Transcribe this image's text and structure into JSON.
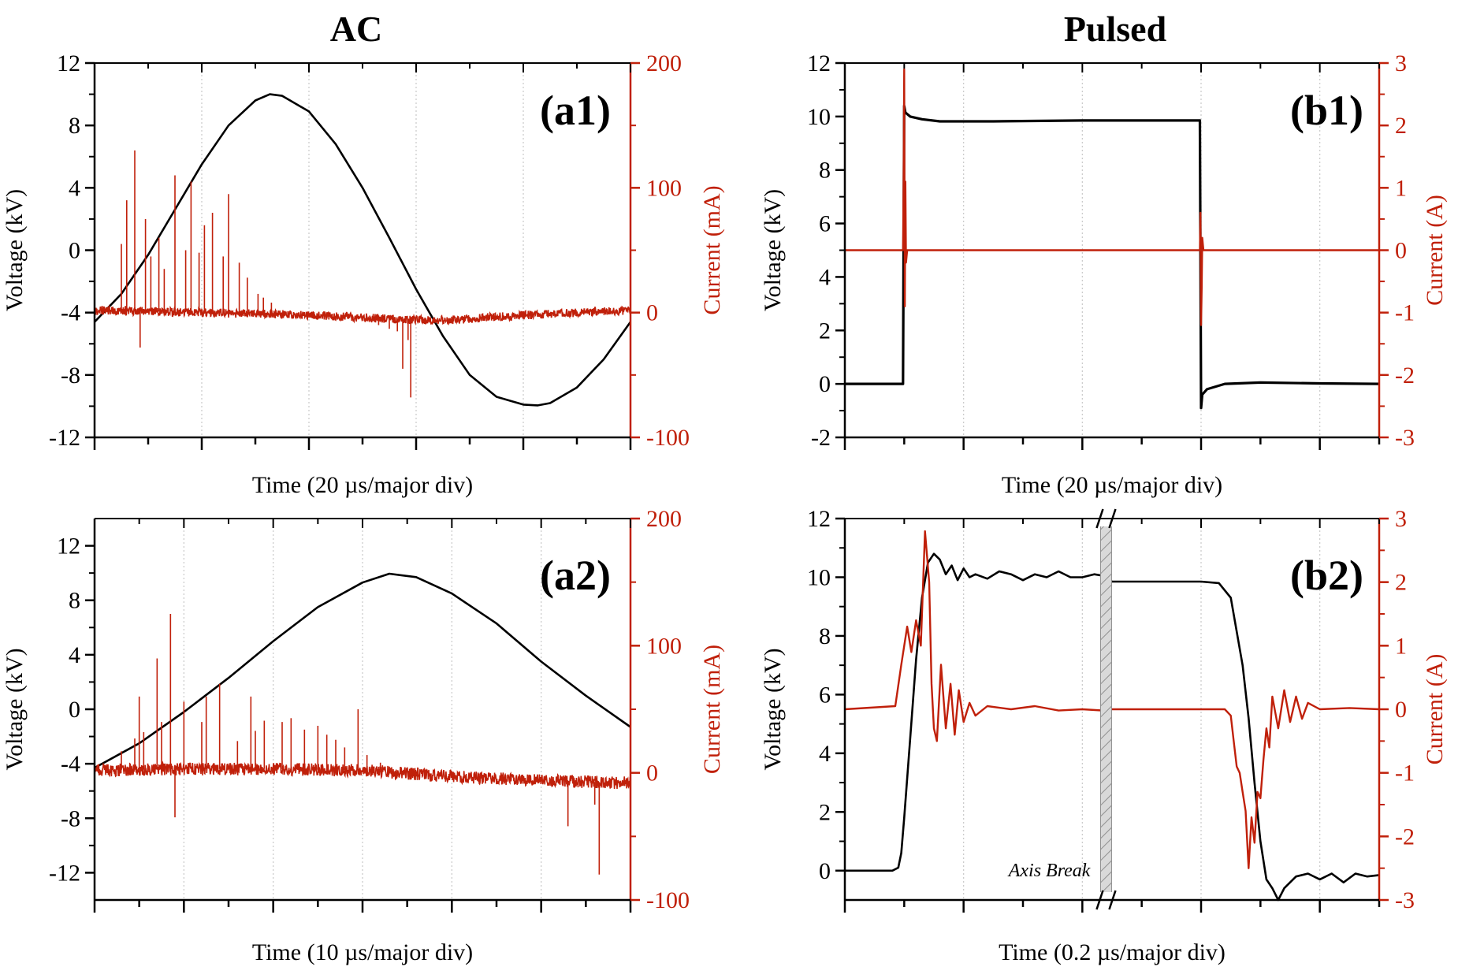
{
  "colors": {
    "voltage": "#000000",
    "current": "#c0200a",
    "grid": "#c8c8c8"
  },
  "column_titles": {
    "left": "AC",
    "right": "Pulsed"
  },
  "chart_data": [
    {
      "id": "a1",
      "type": "line",
      "panel_label": "(a1)",
      "xlabel": "Time (20 µs/major div)",
      "ylabel_left": "Voltage (kV)",
      "ylabel_right": "Current (mA)",
      "xlim": [
        0,
        10
      ],
      "x_major_divs": 5,
      "ylim_left": [
        -12,
        12
      ],
      "yticks_left": [
        -12,
        -8,
        -4,
        0,
        4,
        8,
        12
      ],
      "ylim_right": [
        -100,
        200
      ],
      "yticks_right": [
        -100,
        0,
        100,
        200
      ],
      "series": [
        {
          "name": "Voltage",
          "axis": "left",
          "color": "#000000",
          "x": [
            0,
            0.5,
            1,
            1.5,
            2,
            2.5,
            3,
            3.27,
            3.5,
            4,
            4.5,
            5,
            5.5,
            6,
            6.5,
            7,
            7.5,
            8,
            8.27,
            8.5,
            9,
            9.5,
            10
          ],
          "y": [
            -4.6,
            -2.8,
            -0.3,
            2.6,
            5.5,
            8.0,
            9.6,
            10.0,
            9.9,
            8.9,
            6.8,
            4.0,
            0.8,
            -2.5,
            -5.5,
            -8.0,
            -9.4,
            -9.9,
            -9.95,
            -9.8,
            -8.8,
            -7.0,
            -4.6
          ]
        },
        {
          "name": "Current",
          "axis": "right",
          "color": "#c0200a",
          "baseline": {
            "x": [
              0,
              1,
              2,
              3,
              4,
              5,
              6,
              6.5,
              7,
              8,
              9,
              10
            ],
            "y": [
              2,
              1,
              0,
              -1,
              -2,
              -4,
              -6,
              -6,
              -5,
              -2,
              0,
              2
            ]
          },
          "noise_amplitude": 3.5,
          "spikes": {
            "x": [
              0.5,
              0.6,
              0.75,
              0.85,
              0.95,
              1.05,
              1.2,
              1.3,
              1.5,
              1.7,
              1.8,
              1.95,
              2.05,
              2.2,
              2.4,
              2.5,
              2.7,
              2.85,
              3.05,
              3.15,
              3.3,
              5.3,
              5.5,
              5.65,
              5.75,
              5.85,
              5.9
            ],
            "y": [
              55,
              90,
              130,
              -28,
              75,
              45,
              60,
              35,
              110,
              50,
              105,
              48,
              70,
              80,
              45,
              95,
              40,
              28,
              15,
              12,
              8,
              -10,
              -13,
              -15,
              -45,
              -22,
              -68
            ]
          }
        }
      ]
    },
    {
      "id": "b1",
      "type": "line",
      "panel_label": "(b1)",
      "xlabel": "Time (20 µs/major div)",
      "ylabel_left": "Voltage (kV)",
      "ylabel_right": "Current (A)",
      "xlim": [
        0,
        9
      ],
      "x_major_divs": 4.5,
      "ylim_left": [
        -2,
        12
      ],
      "yticks_left": [
        -2,
        0,
        2,
        4,
        6,
        8,
        10,
        12
      ],
      "ylim_right": [
        -3,
        3
      ],
      "yticks_right": [
        -3,
        -2,
        -1,
        0,
        1,
        2,
        3
      ],
      "series": [
        {
          "name": "Voltage",
          "axis": "left",
          "color": "#000000",
          "x": [
            0,
            0.98,
            1.0,
            1.02,
            1.1,
            1.3,
            1.6,
            2.5,
            4.0,
            5.0,
            5.98,
            6.0,
            6.02,
            6.1,
            6.4,
            7.0,
            8.0,
            9.0
          ],
          "y": [
            0,
            0,
            10.4,
            10.15,
            10.0,
            9.9,
            9.82,
            9.82,
            9.85,
            9.85,
            9.85,
            -0.9,
            -0.4,
            -0.2,
            0,
            0.05,
            0.02,
            0
          ]
        },
        {
          "name": "Current",
          "axis": "right",
          "color": "#c0200a",
          "x": [
            0,
            0.98,
            0.99,
            1.0,
            1.01,
            1.02,
            1.03,
            1.05,
            9.0
          ],
          "y": [
            0,
            0,
            1.2,
            2.9,
            -0.9,
            1.1,
            -0.2,
            0,
            0
          ],
          "x2": [
            5.98,
            5.99,
            6.0,
            6.01,
            6.02,
            6.04,
            9.0
          ],
          "y2": [
            0,
            0.6,
            -1.2,
            -0.6,
            0.2,
            0,
            0
          ]
        }
      ]
    },
    {
      "id": "a2",
      "type": "line",
      "panel_label": "(a2)",
      "xlabel": "Time (10 µs/major div)",
      "ylabel_left": "Voltage (kV)",
      "ylabel_right": "Current (mA)",
      "xlim": [
        0,
        6
      ],
      "x_major_divs": 6,
      "ylim_left": [
        -14,
        14
      ],
      "yticks_left": [
        -12,
        -8,
        -4,
        0,
        4,
        8,
        12
      ],
      "ylim_right": [
        -100,
        200
      ],
      "yticks_right": [
        -100,
        0,
        100,
        200
      ],
      "series": [
        {
          "name": "Voltage",
          "axis": "left",
          "color": "#000000",
          "x": [
            0,
            0.5,
            1,
            1.5,
            2,
            2.5,
            3,
            3.3,
            3.6,
            4,
            4.5,
            5,
            5.5,
            6
          ],
          "y": [
            -4.3,
            -2.5,
            -0.2,
            2.3,
            5.0,
            7.5,
            9.3,
            9.95,
            9.7,
            8.5,
            6.3,
            3.5,
            1.0,
            -1.3
          ]
        },
        {
          "name": "Current",
          "axis": "right",
          "color": "#c0200a",
          "baseline": {
            "x": [
              0,
              1,
              2,
              3,
              3.4,
              4,
              5,
              6
            ],
            "y": [
              2,
              3,
              3,
              2,
              0,
              -3,
              -6,
              -8
            ]
          },
          "noise_amplitude": 5,
          "spikes": {
            "x": [
              0.3,
              0.45,
              0.5,
              0.55,
              0.7,
              0.75,
              0.85,
              0.9,
              1.0,
              1.2,
              1.25,
              1.4,
              1.6,
              1.75,
              1.8,
              1.9,
              2.1,
              2.2,
              2.35,
              2.5,
              2.6,
              2.7,
              2.8,
              2.95,
              3.05,
              3.2,
              5.3,
              5.6,
              5.65
            ],
            "y": [
              17,
              27,
              60,
              32,
              90,
              40,
              125,
              -35,
              56,
              40,
              60,
              70,
              25,
              60,
              33,
              41,
              40,
              43,
              34,
              37,
              30,
              26,
              20,
              50,
              14,
              8,
              -42,
              -25,
              -80
            ]
          }
        }
      ]
    },
    {
      "id": "b2",
      "type": "line",
      "panel_label": "(b2)",
      "xlabel": "Time (0.2 µs/major div)",
      "ylabel_left": "Voltage (kV)",
      "ylabel_right": "Current (A)",
      "annotation": "Axis Break",
      "xlim": [
        0,
        9
      ],
      "x_major_divs": 4.5,
      "axis_break_at": 4.4,
      "ylim_left": [
        -1,
        12
      ],
      "yticks_left": [
        0,
        2,
        4,
        6,
        8,
        10,
        12
      ],
      "ylim_right": [
        -3,
        3
      ],
      "yticks_right": [
        -3,
        -2,
        -1,
        0,
        1,
        2,
        3
      ],
      "series": [
        {
          "name": "Voltage",
          "axis": "left",
          "color": "#000000",
          "x": [
            0,
            0.8,
            0.9,
            0.95,
            1.0,
            1.1,
            1.2,
            1.3,
            1.4,
            1.5,
            1.6,
            1.7,
            1.8,
            1.9,
            2.0,
            2.1,
            2.2,
            2.4,
            2.6,
            2.8,
            3.0,
            3.2,
            3.4,
            3.6,
            3.8,
            4.0,
            4.2,
            4.35,
            4.5,
            4.6,
            5.0,
            5.5,
            6.0,
            6.3,
            6.5,
            6.7,
            6.8,
            6.9,
            7.0,
            7.1,
            7.2,
            7.3,
            7.4,
            7.6,
            7.8,
            8.0,
            8.2,
            8.4,
            8.6,
            8.8,
            9.0
          ],
          "y": [
            0,
            0,
            0.1,
            0.6,
            1.8,
            4.5,
            7.2,
            9.3,
            10.5,
            10.8,
            10.6,
            10.1,
            10.4,
            9.9,
            10.3,
            10.0,
            10.1,
            9.95,
            10.2,
            10.1,
            9.9,
            10.1,
            10.0,
            10.2,
            10.0,
            10.0,
            10.1,
            10.05,
            9.85,
            9.85,
            9.85,
            9.85,
            9.85,
            9.8,
            9.3,
            7.0,
            5.2,
            3.0,
            1.0,
            -0.3,
            -0.6,
            -1.0,
            -0.6,
            -0.2,
            -0.1,
            -0.3,
            -0.1,
            -0.4,
            -0.1,
            -0.2,
            -0.15
          ]
        },
        {
          "name": "Current",
          "axis": "right",
          "color": "#c0200a",
          "x": [
            0,
            0.85,
            0.95,
            1.05,
            1.12,
            1.2,
            1.28,
            1.35,
            1.42,
            1.46,
            1.5,
            1.55,
            1.62,
            1.7,
            1.78,
            1.85,
            1.92,
            2.0,
            2.1,
            2.2,
            2.4,
            2.8,
            3.2,
            3.6,
            4.0,
            4.35,
            4.5,
            5.0,
            5.5,
            6.0,
            6.4,
            6.5,
            6.55,
            6.6,
            6.65,
            6.7,
            6.75,
            6.8,
            6.85,
            6.9,
            6.95,
            7.0,
            7.05,
            7.1,
            7.15,
            7.2,
            7.3,
            7.4,
            7.5,
            7.6,
            7.7,
            7.8,
            8.0,
            8.5,
            9.0
          ],
          "y": [
            0,
            0.05,
            0.7,
            1.3,
            0.9,
            1.4,
            1.0,
            2.8,
            2.0,
            0.4,
            -0.3,
            -0.5,
            0.7,
            -0.3,
            0.4,
            -0.4,
            0.3,
            -0.2,
            0.1,
            -0.1,
            0.05,
            0,
            0.05,
            -0.02,
            0,
            -0.02,
            0,
            0,
            0,
            0,
            0,
            -0.1,
            -0.5,
            -0.9,
            -1.0,
            -1.3,
            -1.6,
            -2.5,
            -1.7,
            -2.1,
            -1.3,
            -1.4,
            -0.8,
            -0.3,
            -0.6,
            0.2,
            -0.3,
            0.3,
            -0.2,
            0.2,
            -0.15,
            0.1,
            0,
            0.02,
            0
          ]
        }
      ]
    }
  ]
}
